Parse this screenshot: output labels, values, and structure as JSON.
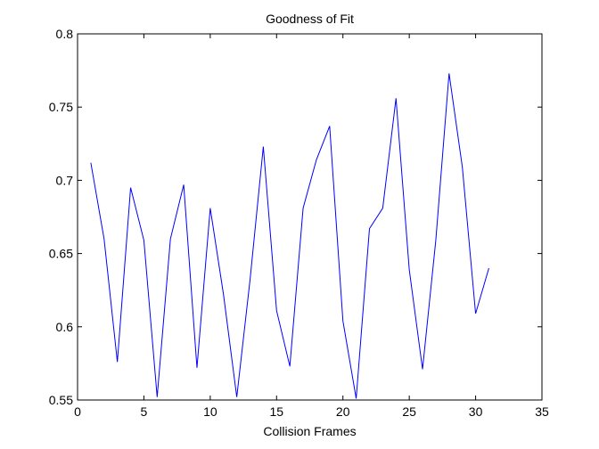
{
  "chart_data": {
    "type": "line",
    "title": "Goodness of Fit",
    "xlabel": "Collision Frames",
    "ylabel": "",
    "xlim": [
      0,
      35
    ],
    "ylim": [
      0.55,
      0.8
    ],
    "xticks": [
      0,
      5,
      10,
      15,
      20,
      25,
      30,
      35
    ],
    "xtick_labels": [
      "0",
      "5",
      "10",
      "15",
      "20",
      "25",
      "30",
      "35"
    ],
    "yticks": [
      0.55,
      0.6,
      0.65,
      0.7,
      0.75,
      0.8
    ],
    "ytick_labels": [
      "0.55",
      "0.6",
      "0.65",
      "0.7",
      "0.75",
      "0.8"
    ],
    "grid": false,
    "line_color": "#0000ff",
    "x": [
      1,
      2,
      3,
      4,
      5,
      6,
      7,
      8,
      9,
      10,
      11,
      12,
      13,
      14,
      15,
      16,
      17,
      18,
      19,
      20,
      21,
      22,
      23,
      24,
      25,
      26,
      27,
      28,
      29,
      30,
      31
    ],
    "values": [
      0.712,
      0.66,
      0.576,
      0.695,
      0.659,
      0.552,
      0.66,
      0.697,
      0.572,
      0.681,
      0.622,
      0.552,
      0.632,
      0.723,
      0.611,
      0.573,
      0.681,
      0.714,
      0.737,
      0.604,
      0.551,
      0.667,
      0.681,
      0.756,
      0.639,
      0.571,
      0.659,
      0.773,
      0.709,
      0.609,
      0.64
    ]
  }
}
